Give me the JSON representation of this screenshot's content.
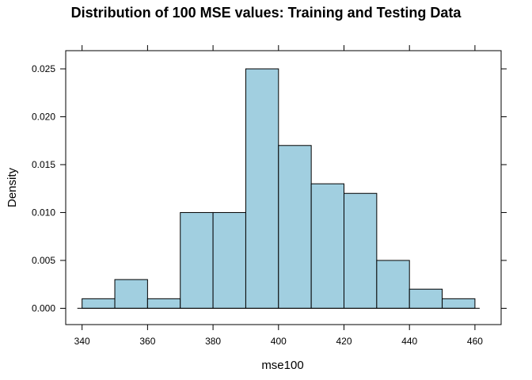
{
  "chart_data": {
    "type": "bar",
    "title": "Distribution of 100 MSE values: Training and Testing Data",
    "xlabel": "mse100",
    "ylabel": "Density",
    "bin_edges": [
      340,
      350,
      360,
      370,
      380,
      390,
      400,
      410,
      420,
      430,
      440,
      450,
      460
    ],
    "values": [
      0.001,
      0.003,
      0.001,
      0.01,
      0.01,
      0.025,
      0.017,
      0.013,
      0.012,
      0.005,
      0.002,
      0.001
    ],
    "xlim": [
      335,
      468
    ],
    "ylim": [
      -0.0017,
      0.0269
    ],
    "x_ticks": [
      340,
      360,
      380,
      400,
      420,
      440,
      460
    ],
    "y_ticks": [
      0.0,
      0.005,
      0.01,
      0.015,
      0.02,
      0.025
    ],
    "y_tick_labels": [
      "0.000",
      "0.005",
      "0.010",
      "0.015",
      "0.020",
      "0.025"
    ],
    "bar_color": "#a1cfe0",
    "grid": false
  }
}
